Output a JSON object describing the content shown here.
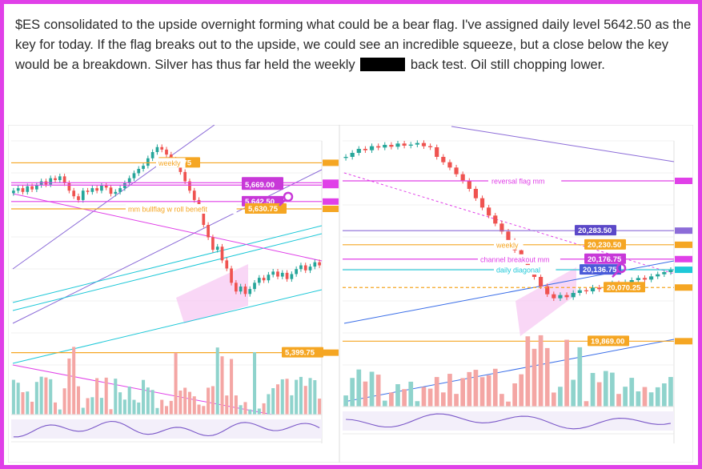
{
  "post": {
    "text_before": "$ES consolidated to the upside overnight forming what could be a bear flag. I've assigned daily level 5642.50 as the key for today. If the flag breaks out to the upside, we could see an incredible squeeze, but a close below the key would be a breakdown. Silver has thus far held the weekly",
    "text_after": "back test. Oil still chopping lower."
  },
  "colors": {
    "frame": "#e040e8",
    "up_candle": "#26a69a",
    "down_candle": "#ef5350",
    "level_orange": "#f5a623",
    "level_magenta": "#e040e8",
    "level_cyan": "#1ec8d8",
    "trend_purple": "#8c6cd8",
    "trend_blue": "#3a6ee8",
    "flag_fill": "#f7c6f2"
  },
  "chart_data": [
    {
      "type": "candlestick",
      "name": "",
      "ylim": [
        5380,
        5740
      ],
      "levels": [
        {
          "label": "5,704.75",
          "value": 5704.75,
          "note": "weekly",
          "color": "orange"
        },
        {
          "label": "5,672.75",
          "value": 5672.75,
          "color": "magenta"
        },
        {
          "label": "5,669.00",
          "value": 5669.0,
          "color": "magenta"
        },
        {
          "label": "5,642.50",
          "value": 5642.5,
          "color": "magenta",
          "key": true
        },
        {
          "label": "5,630.75",
          "value": 5630.75,
          "note": "mm bullflag w roll benefit",
          "color": "orange"
        },
        {
          "label": "5,399.75",
          "value": 5399.75,
          "color": "orange"
        }
      ],
      "closes": [
        5660,
        5664,
        5658,
        5667,
        5662,
        5669,
        5675,
        5670,
        5680,
        5677,
        5683,
        5672,
        5660,
        5651,
        5645,
        5660,
        5658,
        5664,
        5660,
        5668,
        5665,
        5655,
        5658,
        5664,
        5672,
        5680,
        5688,
        5695,
        5700,
        5712,
        5722,
        5730,
        5726,
        5718,
        5710,
        5702,
        5690,
        5675,
        5660,
        5645,
        5630,
        5605,
        5585,
        5565,
        5570,
        5548,
        5535,
        5512,
        5498,
        5506,
        5494,
        5502,
        5512,
        5520,
        5516,
        5525,
        5530,
        5522,
        5528,
        5518,
        5526,
        5534,
        5540,
        5532,
        5538,
        5545,
        5540
      ]
    },
    {
      "type": "candlestick",
      "name": "",
      "ylim": [
        19780,
        20620
      ],
      "levels": [
        {
          "label": "reversal flag mm",
          "value": 20470,
          "color": "magenta"
        },
        {
          "label": "20,283.50",
          "value": 20283.5,
          "color": "purple"
        },
        {
          "label": "20,230.50",
          "value": 20230.5,
          "note": "weekly",
          "color": "orange"
        },
        {
          "label": "20,176.75",
          "value": 20176.75,
          "note": "channel breakout mm",
          "color": "magenta"
        },
        {
          "label": "20,136.75",
          "value": 20136.75,
          "note": "daily diagonal",
          "color": "cyan"
        },
        {
          "label": "20,070.25",
          "value": 20070.25,
          "color": "orange"
        },
        {
          "label": "19,869.00",
          "value": 19869.0,
          "color": "orange"
        }
      ],
      "closes": [
        20560,
        20575,
        20590,
        20585,
        20600,
        20595,
        20605,
        20598,
        20610,
        20602,
        20606,
        20612,
        20600,
        20596,
        20560,
        20540,
        20520,
        20495,
        20470,
        20440,
        20405,
        20370,
        20340,
        20310,
        20280,
        20245,
        20210,
        20175,
        20140,
        20110,
        20075,
        20045,
        20030,
        20042,
        20034,
        20050,
        20060,
        20056,
        20070,
        20064,
        20078,
        20086,
        20080,
        20090,
        20098,
        20106,
        20100,
        20112,
        20120,
        20128,
        20136
      ]
    }
  ]
}
